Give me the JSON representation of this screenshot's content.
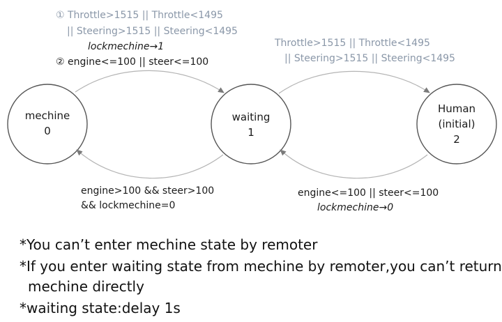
{
  "states": {
    "mechine": {
      "name": "mechine",
      "id": "0"
    },
    "waiting": {
      "name": "waiting",
      "id": "1"
    },
    "human": {
      "name": "Human",
      "sub": "(initial)",
      "id": "2"
    }
  },
  "transitions": {
    "mechine_to_waiting": {
      "cond1_line1": "① Throttle>1515 || Throttle<1495",
      "cond1_line2": "|| Steering>1515 || Steering<1495",
      "cond1_action": "lockmechine→1",
      "cond2": "② engine<=100 || steer<=100"
    },
    "waiting_to_human": {
      "line1": "Throttle>1515 || Throttle<1495",
      "line2": "|| Steering>1515 || Steering<1495"
    },
    "waiting_to_mechine": {
      "line1": "engine>100 && steer>100",
      "line2": "&& lockmechine=0"
    },
    "human_to_waiting": {
      "line1": "engine<=100 || steer<=100",
      "action": "lockmechine→0"
    }
  },
  "notes": [
    "*You can’t enter mechine state by remoter",
    "*If you enter waiting state from mechine by remoter,you can’t return",
    "mechine directly",
    "*waiting state:delay 1s"
  ],
  "colors": {
    "circle_stroke": "#555555",
    "arrow_stroke": "#b4b4b4",
    "gray_text": "#8a97a8"
  }
}
